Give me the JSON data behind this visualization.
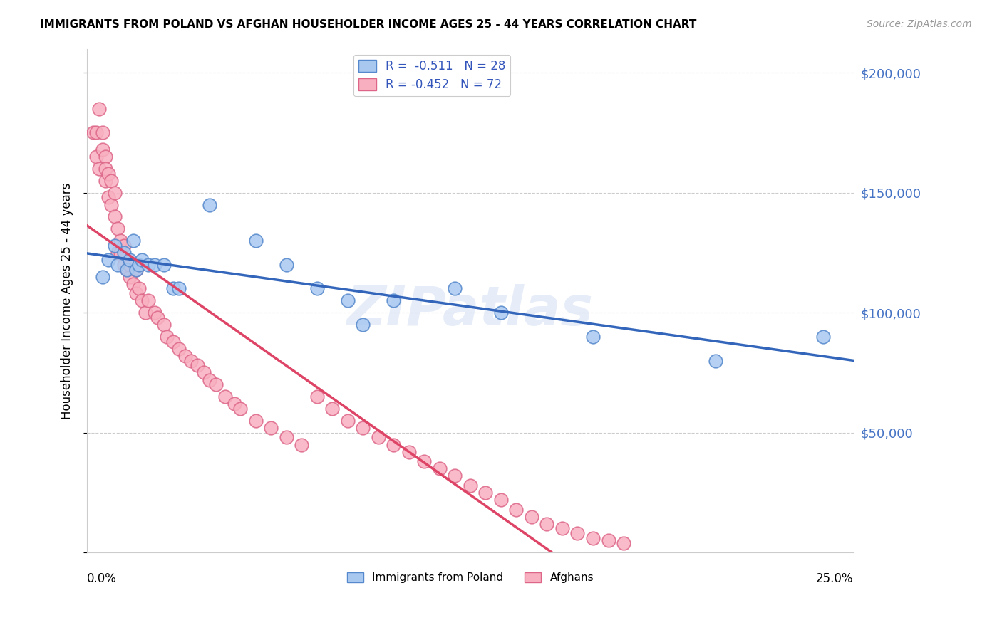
{
  "title": "IMMIGRANTS FROM POLAND VS AFGHAN HOUSEHOLDER INCOME AGES 25 - 44 YEARS CORRELATION CHART",
  "source": "Source: ZipAtlas.com",
  "ylabel": "Householder Income Ages 25 - 44 years",
  "xmin": 0.0,
  "xmax": 0.25,
  "ymin": 0,
  "ymax": 210000,
  "yticks": [
    0,
    50000,
    100000,
    150000,
    200000
  ],
  "ytick_labels": [
    "",
    "$50,000",
    "$100,000",
    "$150,000",
    "$200,000"
  ],
  "legend_line1": "R =  -0.511   N = 28",
  "legend_line2": "R = -0.452   N = 72",
  "poland_color": "#a8c8f0",
  "afghan_color": "#f8b0c0",
  "poland_edge": "#5588cc",
  "afghan_edge": "#dd6688",
  "poland_line_color": "#3366bb",
  "afghan_line_color": "#dd4466",
  "watermark": "ZIPatlas",
  "poland_label": "Immigrants from Poland",
  "afghan_label": "Afghans",
  "poland_scatter_x": [
    0.005,
    0.007,
    0.009,
    0.01,
    0.012,
    0.013,
    0.014,
    0.015,
    0.016,
    0.017,
    0.018,
    0.02,
    0.022,
    0.025,
    0.028,
    0.03,
    0.04,
    0.055,
    0.065,
    0.075,
    0.085,
    0.09,
    0.1,
    0.12,
    0.135,
    0.165,
    0.205,
    0.24
  ],
  "poland_scatter_y": [
    115000,
    122000,
    128000,
    120000,
    125000,
    118000,
    122000,
    130000,
    118000,
    120000,
    122000,
    120000,
    120000,
    120000,
    110000,
    110000,
    145000,
    130000,
    120000,
    110000,
    105000,
    95000,
    105000,
    110000,
    100000,
    90000,
    80000,
    90000
  ],
  "afghan_scatter_x": [
    0.002,
    0.003,
    0.003,
    0.004,
    0.004,
    0.005,
    0.005,
    0.006,
    0.006,
    0.006,
    0.007,
    0.007,
    0.008,
    0.008,
    0.009,
    0.009,
    0.01,
    0.01,
    0.011,
    0.011,
    0.012,
    0.012,
    0.013,
    0.014,
    0.014,
    0.015,
    0.016,
    0.016,
    0.017,
    0.018,
    0.019,
    0.02,
    0.022,
    0.023,
    0.025,
    0.026,
    0.028,
    0.03,
    0.032,
    0.034,
    0.036,
    0.038,
    0.04,
    0.042,
    0.045,
    0.048,
    0.05,
    0.055,
    0.06,
    0.065,
    0.07,
    0.075,
    0.08,
    0.085,
    0.09,
    0.095,
    0.1,
    0.105,
    0.11,
    0.115,
    0.12,
    0.125,
    0.13,
    0.135,
    0.14,
    0.145,
    0.15,
    0.155,
    0.16,
    0.165,
    0.17,
    0.175
  ],
  "afghan_scatter_y": [
    175000,
    175000,
    165000,
    185000,
    160000,
    175000,
    168000,
    165000,
    155000,
    160000,
    158000,
    148000,
    155000,
    145000,
    150000,
    140000,
    135000,
    125000,
    125000,
    130000,
    120000,
    128000,
    118000,
    115000,
    120000,
    112000,
    118000,
    108000,
    110000,
    105000,
    100000,
    105000,
    100000,
    98000,
    95000,
    90000,
    88000,
    85000,
    82000,
    80000,
    78000,
    75000,
    72000,
    70000,
    65000,
    62000,
    60000,
    55000,
    52000,
    48000,
    45000,
    65000,
    60000,
    55000,
    52000,
    48000,
    45000,
    42000,
    38000,
    35000,
    32000,
    28000,
    25000,
    22000,
    18000,
    15000,
    12000,
    10000,
    8000,
    6000,
    5000,
    4000
  ]
}
